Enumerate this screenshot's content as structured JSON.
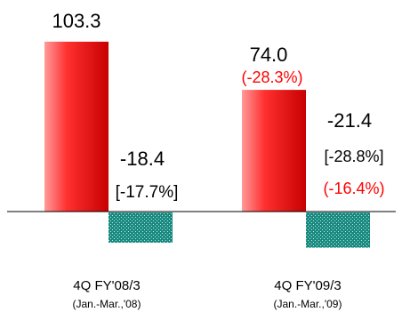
{
  "chart_data": {
    "type": "bar",
    "categories": [
      "4Q FY'08/3",
      "4Q FY'09/3"
    ],
    "category_sublabels": [
      "(Jan.-Mar.,'08)",
      "(Jan.-Mar.,'09)"
    ],
    "series": [
      {
        "values": [
          103.3,
          74.0
        ],
        "value_labels": [
          "103.3",
          "74.0"
        ],
        "change_labels": [
          "",
          "(-28.3%)"
        ],
        "color": "#ff3030"
      },
      {
        "values": [
          -18.4,
          -21.4
        ],
        "value_labels": [
          "-18.4",
          "-21.4"
        ],
        "ratio_labels": [
          "[-17.7%]",
          "[-28.8%]"
        ],
        "change_labels": [
          "",
          "(-16.4%)"
        ],
        "color": "#1a8a80"
      }
    ],
    "ylim": [
      -24,
      110
    ],
    "grid": false,
    "legend": "none",
    "colors": {
      "red_bar": "#ff3030",
      "red_bar_highlight": "#ff9a9a",
      "red_bar_shade": "#c80000",
      "teal_bar": "#1a8a80",
      "teal_dot": "#b8e8e0",
      "change_text": "#ff0000",
      "text": "#000000",
      "axis": "#000000"
    }
  }
}
